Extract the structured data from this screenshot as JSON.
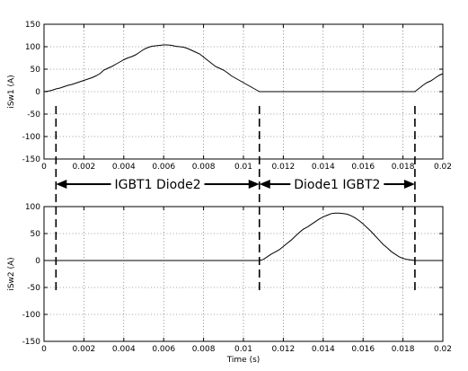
{
  "chart_data": [
    {
      "type": "line",
      "ylabel": "iSw1 (A)",
      "xlabel": "",
      "xlim": [
        0,
        0.02
      ],
      "ylim": [
        -150,
        150
      ],
      "x_ticks": [
        "0",
        "0.002",
        "0.004",
        "0.006",
        "0.008",
        "0.01",
        "0.012",
        "0.014",
        "0.016",
        "0.018",
        "0.02"
      ],
      "y_ticks": [
        "150",
        "100",
        "50",
        "0",
        "-50",
        "-100",
        "-150"
      ],
      "grid": true,
      "series": [
        {
          "values": [
            [
              0,
              0
            ],
            [
              0.0002,
              1
            ],
            [
              0.0004,
              3
            ],
            [
              0.0006,
              6
            ],
            [
              0.0008,
              8
            ],
            [
              0.001,
              11
            ],
            [
              0.0012,
              14
            ],
            [
              0.0014,
              16
            ],
            [
              0.0016,
              19
            ],
            [
              0.0018,
              22
            ],
            [
              0.002,
              25
            ],
            [
              0.0022,
              28
            ],
            [
              0.0024,
              31
            ],
            [
              0.0026,
              35
            ],
            [
              0.0028,
              40
            ],
            [
              0.003,
              48
            ],
            [
              0.0032,
              52
            ],
            [
              0.0034,
              56
            ],
            [
              0.0036,
              61
            ],
            [
              0.0038,
              66
            ],
            [
              0.004,
              71
            ],
            [
              0.0042,
              75
            ],
            [
              0.0044,
              78
            ],
            [
              0.0046,
              82
            ],
            [
              0.0048,
              88
            ],
            [
              0.005,
              94
            ],
            [
              0.0052,
              98
            ],
            [
              0.0054,
              101
            ],
            [
              0.0056,
              102
            ],
            [
              0.0058,
              103
            ],
            [
              0.006,
              104
            ],
            [
              0.0062,
              104
            ],
            [
              0.0064,
              103
            ],
            [
              0.0066,
              101
            ],
            [
              0.0068,
              100
            ],
            [
              0.007,
              99
            ],
            [
              0.0072,
              96
            ],
            [
              0.0074,
              92
            ],
            [
              0.0076,
              88
            ],
            [
              0.0078,
              84
            ],
            [
              0.008,
              77
            ],
            [
              0.0082,
              70
            ],
            [
              0.0084,
              63
            ],
            [
              0.0086,
              56
            ],
            [
              0.0088,
              52
            ],
            [
              0.009,
              48
            ],
            [
              0.0092,
              42
            ],
            [
              0.0094,
              35
            ],
            [
              0.0096,
              30
            ],
            [
              0.0098,
              25
            ],
            [
              0.01,
              20
            ],
            [
              0.0102,
              15
            ],
            [
              0.0104,
              10
            ],
            [
              0.0106,
              5
            ],
            [
              0.0108,
              0
            ],
            [
              0.011,
              0
            ],
            [
              0.012,
              0
            ],
            [
              0.013,
              0
            ],
            [
              0.014,
              0
            ],
            [
              0.015,
              0
            ],
            [
              0.016,
              0
            ],
            [
              0.017,
              0
            ],
            [
              0.018,
              0
            ],
            [
              0.0186,
              0
            ],
            [
              0.0188,
              7
            ],
            [
              0.019,
              14
            ],
            [
              0.0192,
              20
            ],
            [
              0.0194,
              24
            ],
            [
              0.0196,
              30
            ],
            [
              0.0198,
              36
            ],
            [
              0.02,
              40
            ]
          ]
        }
      ]
    },
    {
      "type": "line",
      "ylabel": "iSw2 (A)",
      "xlabel": "Time (s)",
      "xlim": [
        0,
        0.02
      ],
      "ylim": [
        -150,
        100
      ],
      "x_ticks": [
        "0",
        "0.002",
        "0.004",
        "0.006",
        "0.008",
        "0.01",
        "0.012",
        "0.014",
        "0.016",
        "0.018",
        "0.02"
      ],
      "y_ticks": [
        "100",
        "50",
        "0",
        "-50",
        "-100",
        "-150"
      ],
      "grid": true,
      "series": [
        {
          "values": [
            [
              0,
              0
            ],
            [
              0.0006,
              0
            ],
            [
              0.001,
              0
            ],
            [
              0.002,
              0
            ],
            [
              0.003,
              0
            ],
            [
              0.004,
              0
            ],
            [
              0.005,
              0
            ],
            [
              0.006,
              0
            ],
            [
              0.007,
              0
            ],
            [
              0.008,
              0
            ],
            [
              0.009,
              0
            ],
            [
              0.01,
              0
            ],
            [
              0.0108,
              0
            ],
            [
              0.011,
              2
            ],
            [
              0.0112,
              7
            ],
            [
              0.0114,
              12
            ],
            [
              0.0116,
              16
            ],
            [
              0.0118,
              20
            ],
            [
              0.012,
              26
            ],
            [
              0.0122,
              32
            ],
            [
              0.0124,
              38
            ],
            [
              0.0126,
              45
            ],
            [
              0.0128,
              52
            ],
            [
              0.013,
              58
            ],
            [
              0.0132,
              62
            ],
            [
              0.0134,
              67
            ],
            [
              0.0136,
              72
            ],
            [
              0.0138,
              77
            ],
            [
              0.014,
              81
            ],
            [
              0.0142,
              84
            ],
            [
              0.0144,
              87
            ],
            [
              0.0146,
              88
            ],
            [
              0.0148,
              88
            ],
            [
              0.015,
              87
            ],
            [
              0.0152,
              86
            ],
            [
              0.0154,
              83
            ],
            [
              0.0156,
              79
            ],
            [
              0.0158,
              74
            ],
            [
              0.016,
              68
            ],
            [
              0.0162,
              61
            ],
            [
              0.0164,
              54
            ],
            [
              0.0166,
              46
            ],
            [
              0.0168,
              38
            ],
            [
              0.017,
              30
            ],
            [
              0.0172,
              24
            ],
            [
              0.0174,
              17
            ],
            [
              0.0176,
              12
            ],
            [
              0.0178,
              7
            ],
            [
              0.018,
              4
            ],
            [
              0.0182,
              2
            ],
            [
              0.0184,
              1
            ],
            [
              0.0186,
              0
            ],
            [
              0.02,
              0
            ]
          ]
        }
      ]
    }
  ],
  "annotations": {
    "left_region": "IGBT1 Diode2",
    "right_region": "Diode1 IGBT2"
  }
}
